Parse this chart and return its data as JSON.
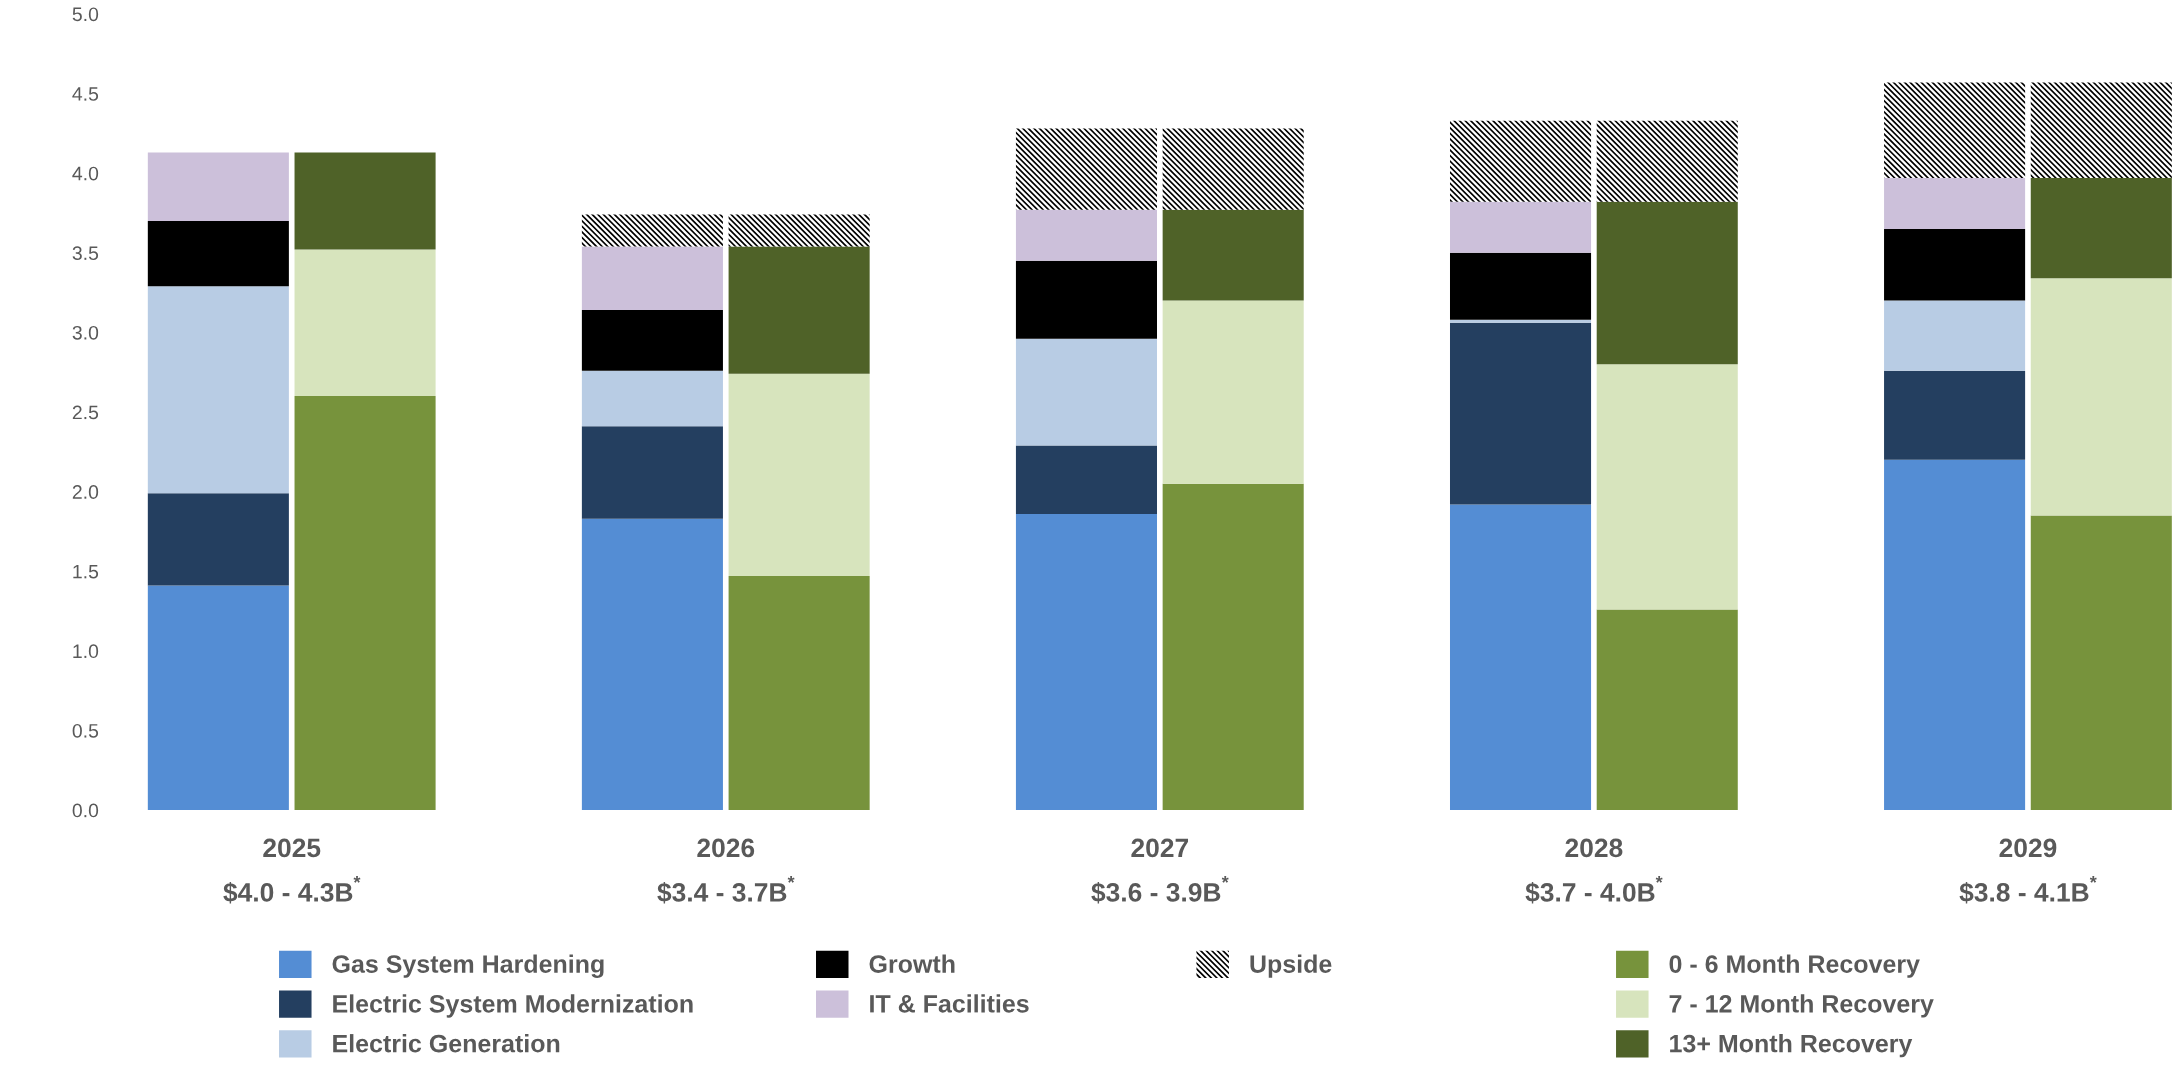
{
  "chart_data": [
    {
      "type": "bar",
      "stacked": true,
      "categories": [
        "2025",
        "2026",
        "2027",
        "2028",
        "2029"
      ],
      "series": [
        {
          "name": "Gas System Hardening",
          "color": "#548dd4",
          "values": [
            1.41,
            1.83,
            1.86,
            1.92,
            2.2
          ]
        },
        {
          "name": "Electric System Modernization",
          "color": "#243f60",
          "values": [
            0.58,
            0.58,
            0.43,
            1.14,
            0.56
          ]
        },
        {
          "name": "Electric Generation",
          "color": "#b8cce4",
          "values": [
            1.3,
            0.35,
            0.67,
            0.02,
            0.44
          ]
        },
        {
          "name": "Growth",
          "color": "#000000",
          "values": [
            0.41,
            0.38,
            0.49,
            0.42,
            0.45
          ]
        },
        {
          "name": "IT & Facilities",
          "color": "#ccc0da",
          "values": [
            0.43,
            0.4,
            0.32,
            0.32,
            0.32
          ]
        },
        {
          "name": "Upside",
          "color": "#000000",
          "values": [
            0,
            0.2,
            0.51,
            0.51,
            0.6
          ]
        }
      ],
      "annotations": [
        "$4.0 - 4.3B$^{*}$",
        "$3.4 - 3.7B$^{*}$",
        "$3.6 - 3.9B$^{*}$",
        "$3.7 - 4.0B$^{*}$",
        "$3.8 - 4.1B$^{*}$"
      ],
      "ylim": [
        0,
        5
      ],
      "yticks": [
        {
          "value": 0,
          "label": "0.0"
        },
        {
          "value": 0.5,
          "label": "0.5"
        },
        {
          "value": 1,
          "label": "1.0"
        },
        {
          "value": 1.5,
          "label": "1.5"
        },
        {
          "value": 2,
          "label": "2.0"
        },
        {
          "value": 2.5,
          "label": "2.5"
        },
        {
          "value": 3,
          "label": "3.0"
        },
        {
          "value": 3.5,
          "label": "3.5"
        },
        {
          "value": 4,
          "label": "4.0"
        },
        {
          "value": 4.5,
          "label": "4.5"
        },
        {
          "value": 5,
          "label": "5.0"
        }
      ],
      "legend": "bottom"
    },
    {
      "type": "bar",
      "stacked": true,
      "categories": [
        "2025",
        "2026",
        "2027",
        "2028",
        "2029"
      ],
      "series": [
        {
          "name": "0 - 6 Month Recovery",
          "color": "#77933c",
          "values": [
            2.6,
            1.47,
            2.05,
            1.26,
            1.85
          ]
        },
        {
          "name": "7 - 12 Month Recovery",
          "color": "#d7e4bd",
          "values": [
            0.92,
            1.27,
            1.15,
            1.54,
            1.49
          ]
        },
        {
          "name": "13+ Month Recovery",
          "color": "#4f6228",
          "values": [
            0.61,
            0.8,
            0.57,
            1.02,
            0.63
          ]
        },
        {
          "color": "#000000",
          "values": [
            0,
            0.2,
            0.51,
            0.51,
            0.6
          ]
        }
      ],
      "ylim": [
        0,
        5
      ],
      "tick_labels": false,
      "legend": "bottom"
    }
  ]
}
